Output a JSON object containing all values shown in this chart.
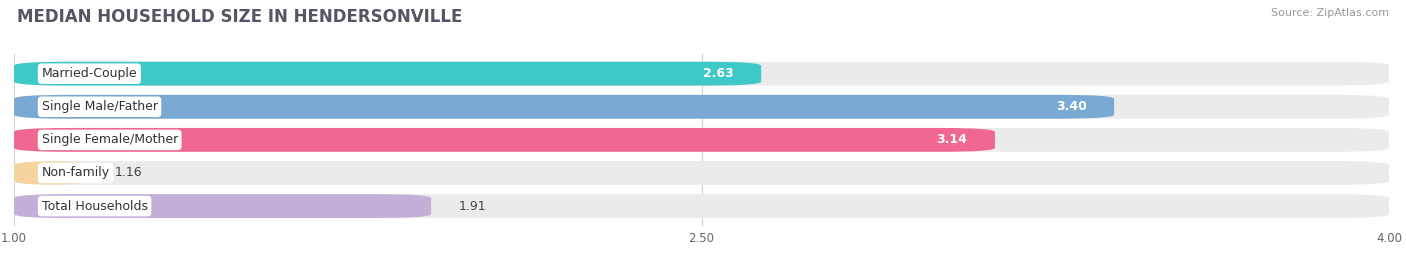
{
  "title": "MEDIAN HOUSEHOLD SIZE IN HENDERSONVILLE",
  "source": "Source: ZipAtlas.com",
  "categories": [
    "Married-Couple",
    "Single Male/Father",
    "Single Female/Mother",
    "Non-family",
    "Total Households"
  ],
  "values": [
    2.63,
    3.4,
    3.14,
    1.16,
    1.91
  ],
  "bar_colors": [
    "#3ec8c8",
    "#7aaad4",
    "#f06890",
    "#f5d4a0",
    "#c4afd8"
  ],
  "bar_edge_colors": [
    "#3ec8c8",
    "#7aaad4",
    "#f06890",
    "#f5d4a0",
    "#c4afd8"
  ],
  "label_dot_colors": [
    "#3ec8c8",
    "#7aaad4",
    "#f06890",
    "#f5d4a0",
    "#c4afd8"
  ],
  "xlim": [
    1.0,
    4.0
  ],
  "xticks": [
    1.0,
    2.5,
    4.0
  ],
  "background_color": "#ffffff",
  "bar_bg_color": "#ebebeb",
  "title_fontsize": 12,
  "source_fontsize": 8,
  "label_fontsize": 9,
  "value_fontsize": 9
}
